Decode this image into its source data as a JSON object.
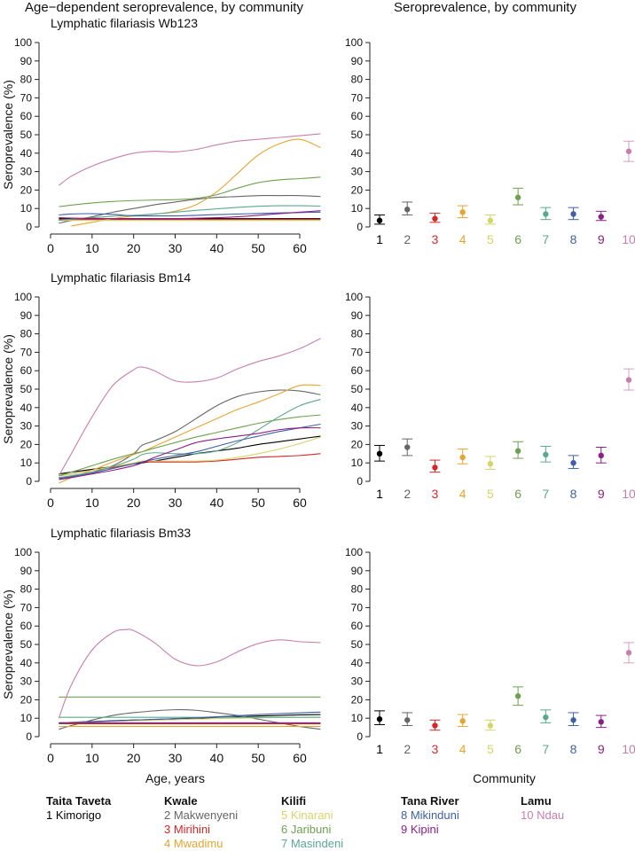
{
  "header": {
    "left_title": "Age−dependent seroprevalence, by community",
    "right_title": "Seroprevalence, by community"
  },
  "communities": [
    {
      "id": 1,
      "name": "Kimorigo",
      "color": "#000000"
    },
    {
      "id": 2,
      "name": "Makwenyeni",
      "color": "#666666"
    },
    {
      "id": 3,
      "name": "Mirihini",
      "color": "#d62728"
    },
    {
      "id": 4,
      "name": "Mwadimu",
      "color": "#e6a532"
    },
    {
      "id": 5,
      "name": "Kinarani",
      "color": "#d4d46a"
    },
    {
      "id": 6,
      "name": "Jaribuni",
      "color": "#6fa050"
    },
    {
      "id": 7,
      "name": "Masindeni",
      "color": "#5aa88e"
    },
    {
      "id": 8,
      "name": "Mikinduni",
      "color": "#3f5fa6"
    },
    {
      "id": 9,
      "name": "Kipini",
      "color": "#8a1f86"
    },
    {
      "id": 10,
      "name": "Ndau",
      "color": "#c87fab"
    }
  ],
  "legend": {
    "groups": [
      {
        "county": "Taita Taveta",
        "items": [
          "1 Kimorigo"
        ],
        "ids": [
          1
        ]
      },
      {
        "county": "Kwale",
        "items": [
          "2 Makwenyeni",
          "3 Mirihini",
          "4 Mwadimu"
        ],
        "ids": [
          2,
          3,
          4
        ]
      },
      {
        "county": "Kilifi",
        "items": [
          "5 Kinarani",
          "6 Jaribuni",
          "7 Masindeni"
        ],
        "ids": [
          5,
          6,
          7
        ]
      },
      {
        "county": "Tana River",
        "items": [
          "8 Mikinduni",
          "9 Kipini"
        ],
        "ids": [
          8,
          9
        ]
      },
      {
        "county": "Lamu",
        "items": [
          "10 Ndau"
        ],
        "ids": [
          10
        ]
      }
    ]
  },
  "chart_data": [
    {
      "type": "line",
      "title": "Lymphatic filariasis Wb123",
      "xlabel": "",
      "ylabel": "Seroprevalence (%)",
      "xlim": [
        0,
        65
      ],
      "ylim": [
        0,
        100
      ],
      "xticks": [
        0,
        10,
        20,
        30,
        40,
        50,
        60
      ],
      "yticks": [
        0,
        10,
        20,
        30,
        40,
        50,
        60,
        70,
        80,
        90,
        100
      ],
      "x": [
        2,
        5,
        10,
        15,
        20,
        25,
        30,
        35,
        40,
        45,
        50,
        55,
        60,
        65
      ],
      "series": [
        {
          "name": "1",
          "values": [
            4.5,
            4.5,
            4.5,
            4.5,
            4.5,
            4.5,
            4.5,
            4.5,
            4.5,
            4.5,
            4.5,
            4.5,
            4.5,
            4.5
          ]
        },
        {
          "name": "2",
          "values": [
            2,
            3.5,
            5.5,
            8,
            10,
            12,
            13.5,
            15,
            16,
            16.5,
            17,
            17,
            17,
            16.5
          ]
        },
        {
          "name": "3",
          "values": [
            4,
            4,
            4,
            4,
            4,
            4,
            4,
            4,
            4,
            4,
            4,
            4,
            4,
            4
          ]
        },
        {
          "name": "4",
          "values": [
            null,
            0.5,
            2.5,
            4.5,
            6,
            7,
            8.5,
            12,
            19,
            29,
            39,
            45,
            47.5,
            43
          ]
        },
        {
          "name": "5",
          "values": [
            3.5,
            3.5,
            3.5,
            3.5,
            3.5,
            3.5,
            3.5,
            3.5,
            3.5,
            3.5,
            3.5,
            3.5,
            3.5,
            3.5
          ]
        },
        {
          "name": "6",
          "values": [
            11,
            11.8,
            13,
            13.8,
            14.3,
            14.6,
            14.8,
            15.5,
            17.5,
            21,
            24,
            25.5,
            26.2,
            27
          ]
        },
        {
          "name": "7",
          "values": [
            3.5,
            4.2,
            5,
            5.8,
            6.3,
            7,
            8,
            9,
            9.8,
            10.6,
            11.2,
            11.5,
            11.5,
            11.3
          ]
        },
        {
          "name": "8",
          "values": [
            6.5,
            7,
            7.2,
            6.8,
            6,
            6,
            6,
            6.3,
            6.7,
            7,
            7.3,
            7.6,
            7.8,
            8
          ]
        },
        {
          "name": "9",
          "values": [
            5,
            4.8,
            4.6,
            4.5,
            4.4,
            4.4,
            4.5,
            4.7,
            5,
            5.5,
            6.3,
            7.2,
            8,
            8.8
          ]
        },
        {
          "name": "10",
          "values": [
            22.5,
            27.5,
            33,
            37,
            40,
            41,
            40.7,
            42,
            44.5,
            46.5,
            47.5,
            48.5,
            49.5,
            50.5
          ]
        }
      ]
    },
    {
      "type": "scatter",
      "title": "",
      "xlabel": "",
      "ylabel": "",
      "ylim": [
        0,
        100
      ],
      "yticks": [
        0,
        10,
        20,
        30,
        40,
        50,
        60,
        70,
        80,
        90,
        100
      ],
      "categories": [
        "1",
        "2",
        "3",
        "4",
        "5",
        "6",
        "7",
        "8",
        "9",
        "10"
      ],
      "values": [
        3.5,
        9.5,
        4.5,
        8,
        3.5,
        16,
        7,
        7,
        5.5,
        41
      ],
      "lower": [
        1.5,
        6.5,
        2.5,
        5,
        1.5,
        12,
        4,
        4,
        3.5,
        35.5
      ],
      "upper": [
        6.5,
        13.5,
        7.5,
        11.5,
        6.5,
        21,
        10.5,
        10.5,
        8.5,
        46.5
      ]
    },
    {
      "type": "line",
      "title": "Lymphatic filariasis Bm14",
      "xlabel": "",
      "ylabel": "Seroprevalence (%)",
      "xlim": [
        0,
        65
      ],
      "ylim": [
        0,
        100
      ],
      "xticks": [
        0,
        10,
        20,
        30,
        40,
        50,
        60
      ],
      "yticks": [
        0,
        10,
        20,
        30,
        40,
        50,
        60,
        70,
        80,
        90,
        100
      ],
      "x": [
        2,
        5,
        10,
        15,
        20,
        22,
        25,
        30,
        35,
        40,
        45,
        50,
        55,
        60,
        65
      ],
      "series": [
        {
          "name": "1",
          "values": [
            4,
            5,
            6.5,
            8,
            9.5,
            10,
            11,
            13,
            15,
            16.5,
            18,
            20,
            21.5,
            23,
            24.5
          ]
        },
        {
          "name": "2",
          "values": [
            2,
            3,
            5,
            8.5,
            15,
            19.5,
            22,
            27,
            34,
            41,
            46,
            48.5,
            49.5,
            49,
            47
          ]
        },
        {
          "name": "3",
          "values": [
            3,
            4,
            6,
            7.5,
            9.5,
            10.5,
            10.5,
            10.5,
            10.5,
            11,
            12,
            13,
            13.5,
            14,
            15
          ]
        },
        {
          "name": "4",
          "values": [
            -1,
            2,
            6,
            10.5,
            14.5,
            16,
            19,
            24,
            29,
            34,
            39,
            43,
            47.5,
            52,
            52
          ]
        },
        {
          "name": "5",
          "values": [
            3,
            4,
            6,
            8,
            10,
            11,
            11,
            11,
            11,
            11.5,
            13,
            15,
            17.5,
            20.5,
            24
          ]
        },
        {
          "name": "6",
          "values": [
            3,
            5,
            8.5,
            12,
            15,
            16,
            18,
            21,
            24,
            26.5,
            29,
            31.5,
            33.5,
            35,
            36
          ]
        },
        {
          "name": "7",
          "values": [
            2,
            3,
            5,
            8,
            12,
            14.5,
            15.5,
            15,
            15,
            16.5,
            21,
            28,
            35,
            41,
            44.5
          ]
        },
        {
          "name": "8",
          "values": [
            1.5,
            2.5,
            4.5,
            7,
            9.5,
            10.5,
            12,
            14,
            16,
            19,
            22,
            24.5,
            27,
            29,
            31
          ]
        },
        {
          "name": "9",
          "values": [
            1,
            2,
            4,
            6,
            8.5,
            10,
            13,
            17,
            21,
            23,
            24.5,
            26,
            28,
            29,
            29
          ]
        },
        {
          "name": "10",
          "values": [
            3,
            15,
            35,
            52,
            60.5,
            62,
            60,
            54.5,
            54,
            56,
            61,
            65,
            68,
            72,
            77.5
          ]
        }
      ]
    },
    {
      "type": "scatter",
      "title": "",
      "xlabel": "",
      "ylabel": "",
      "ylim": [
        0,
        100
      ],
      "yticks": [
        0,
        10,
        20,
        30,
        40,
        50,
        60,
        70,
        80,
        90,
        100
      ],
      "categories": [
        "1",
        "2",
        "3",
        "4",
        "5",
        "6",
        "7",
        "8",
        "9",
        "10"
      ],
      "values": [
        15,
        18.5,
        7.5,
        13,
        9.5,
        16.5,
        14.5,
        10,
        14,
        55
      ],
      "lower": [
        11,
        14,
        5,
        9.5,
        6.5,
        12.5,
        10.5,
        7,
        10,
        49.5
      ],
      "upper": [
        19.5,
        23,
        11.5,
        17.5,
        13.5,
        21.5,
        19,
        14,
        18.5,
        61
      ]
    },
    {
      "type": "line",
      "title": "Lymphatic filariasis Bm33",
      "xlabel": "Age, years",
      "ylabel": "Seroprevalence (%)",
      "xlim": [
        0,
        65
      ],
      "ylim": [
        0,
        100
      ],
      "xticks": [
        0,
        10,
        20,
        30,
        40,
        50,
        60
      ],
      "yticks": [
        0,
        10,
        20,
        30,
        40,
        50,
        60,
        70,
        80,
        90,
        100
      ],
      "x": [
        2,
        5,
        10,
        15,
        18,
        20,
        25,
        30,
        35,
        40,
        45,
        50,
        55,
        60,
        65
      ],
      "series": [
        {
          "name": "1",
          "values": [
            7.5,
            7.8,
            8.2,
            8.6,
            8.9,
            9,
            9.3,
            9.7,
            10,
            10.4,
            10.8,
            11.2,
            11.5,
            11.8,
            12
          ]
        },
        {
          "name": "2",
          "values": [
            4,
            6,
            9,
            11.5,
            12.5,
            13,
            14,
            14.6,
            14.3,
            13,
            11.5,
            9.5,
            7.5,
            5.5,
            4
          ]
        },
        {
          "name": "3",
          "values": [
            7,
            7,
            7,
            7,
            7,
            7,
            7,
            7,
            7,
            7,
            7,
            7,
            7,
            7,
            7
          ]
        },
        {
          "name": "4",
          "values": [
            5.5,
            5.5,
            5.5,
            5.5,
            5.5,
            5.5,
            5.5,
            5.5,
            5.5,
            5.5,
            5.5,
            5.5,
            5.5,
            5.5,
            5.5
          ]
        },
        {
          "name": "5",
          "values": [
            7.5,
            7.7,
            8,
            8.3,
            8.5,
            8.6,
            8.9,
            9.2,
            9.5,
            9.8,
            10,
            10.2,
            10.4,
            10.5,
            10.6
          ]
        },
        {
          "name": "6",
          "values": [
            21.5,
            21.5,
            21.5,
            21.5,
            21.5,
            21.5,
            21.5,
            21.5,
            21.5,
            21.5,
            21.5,
            21.5,
            21.5,
            21.5,
            21.5
          ]
        },
        {
          "name": "7",
          "values": [
            10.5,
            10.5,
            10.5,
            10.5,
            10.5,
            10.5,
            10.5,
            10.5,
            10.5,
            10.5,
            10.5,
            10.5,
            10.5,
            10.5,
            10.5
          ]
        },
        {
          "name": "8",
          "values": [
            7,
            7.4,
            8,
            8.5,
            8.8,
            9,
            9.4,
            9.8,
            10.2,
            10.8,
            11.4,
            12,
            12.5,
            12.9,
            13.3
          ]
        },
        {
          "name": "9",
          "values": [
            7.5,
            7.5,
            7.5,
            7.5,
            7.5,
            7.5,
            7.5,
            7.5,
            7.5,
            7.5,
            7.5,
            7.5,
            7.5,
            7.5,
            7.5
          ]
        },
        {
          "name": "10",
          "values": [
            10,
            28,
            47,
            56.5,
            58,
            57.5,
            51,
            42,
            38.5,
            40.5,
            46,
            50.5,
            52.5,
            51.5,
            51
          ]
        }
      ]
    },
    {
      "type": "scatter",
      "title": "",
      "xlabel": "Community",
      "ylabel": "",
      "ylim": [
        0,
        100
      ],
      "yticks": [
        0,
        10,
        20,
        30,
        40,
        50,
        60,
        70,
        80,
        90,
        100
      ],
      "categories": [
        "1",
        "2",
        "3",
        "4",
        "5",
        "6",
        "7",
        "8",
        "9",
        "10"
      ],
      "values": [
        9.5,
        9,
        6,
        8.5,
        6,
        22,
        10.5,
        9,
        8,
        45.5
      ],
      "lower": [
        6.5,
        6,
        3.5,
        5.5,
        3.5,
        17,
        7.5,
        6,
        5,
        40
      ],
      "upper": [
        14,
        13,
        9,
        12,
        9,
        27,
        14.5,
        13,
        11.5,
        51
      ]
    }
  ]
}
